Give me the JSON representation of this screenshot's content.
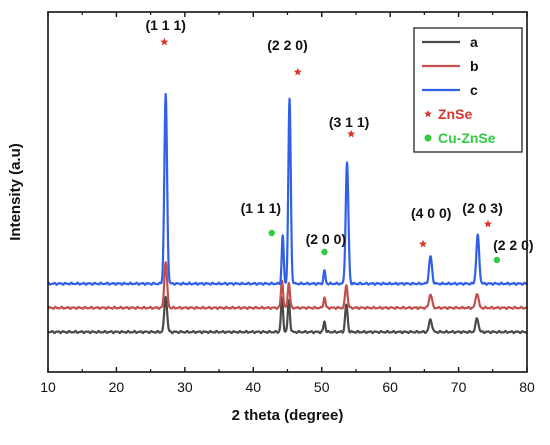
{
  "chart_data": {
    "type": "line",
    "xlabel": "2 theta (degree)",
    "ylabel": "Intensity (a.u)",
    "xlim": [
      10,
      80
    ],
    "xticks": [
      "10",
      "20",
      "30",
      "40",
      "50",
      "60",
      "70",
      "80"
    ],
    "yticks_shown": false,
    "legend_position": "top-right",
    "series": [
      {
        "name": "a",
        "color": "#4a4a4a",
        "baseline": 0.0,
        "peaks": [
          {
            "x": 27.2,
            "h": 0.34,
            "w": 0.28
          },
          {
            "x": 44.2,
            "h": 0.32,
            "w": 0.22
          },
          {
            "x": 45.2,
            "h": 0.3,
            "w": 0.22
          },
          {
            "x": 50.4,
            "h": 0.1,
            "w": 0.2
          },
          {
            "x": 53.6,
            "h": 0.26,
            "w": 0.25
          },
          {
            "x": 65.9,
            "h": 0.12,
            "w": 0.3
          },
          {
            "x": 72.7,
            "h": 0.13,
            "w": 0.3
          }
        ]
      },
      {
        "name": "b",
        "color": "#c0504d",
        "baseline": 0.23,
        "peaks": [
          {
            "x": 27.2,
            "h": 0.44,
            "w": 0.28
          },
          {
            "x": 44.2,
            "h": 0.26,
            "w": 0.22
          },
          {
            "x": 45.2,
            "h": 0.24,
            "w": 0.22
          },
          {
            "x": 50.4,
            "h": 0.1,
            "w": 0.2
          },
          {
            "x": 53.6,
            "h": 0.22,
            "w": 0.25
          },
          {
            "x": 65.9,
            "h": 0.13,
            "w": 0.3
          },
          {
            "x": 72.7,
            "h": 0.14,
            "w": 0.3
          }
        ]
      },
      {
        "name": "c",
        "color": "#3060e8",
        "baseline": 0.46,
        "peaks": [
          {
            "x": 27.2,
            "h": 1.8,
            "w": 0.28
          },
          {
            "x": 44.3,
            "h": 0.46,
            "w": 0.2
          },
          {
            "x": 45.3,
            "h": 1.76,
            "w": 0.25
          },
          {
            "x": 50.4,
            "h": 0.12,
            "w": 0.2
          },
          {
            "x": 53.7,
            "h": 1.15,
            "w": 0.28
          },
          {
            "x": 65.9,
            "h": 0.26,
            "w": 0.3
          },
          {
            "x": 72.8,
            "h": 0.46,
            "w": 0.3
          }
        ]
      }
    ],
    "legend": [
      {
        "text": "a",
        "type": "line",
        "color": "#4a4a4a"
      },
      {
        "text": "b",
        "type": "line",
        "color": "#c0504d"
      },
      {
        "text": "c",
        "type": "line",
        "color": "#3060e8"
      },
      {
        "text": "ZnSe",
        "type": "star",
        "color": "#d9362a"
      },
      {
        "text": "Cu-ZnSe",
        "type": "dot",
        "color": "#2ecc40"
      }
    ],
    "annotations": [
      {
        "text": "(1 1 1)",
        "x": 27.2,
        "marker": "star",
        "marker_x": 27.0
      },
      {
        "text": "(2 2 0)",
        "x": 45.0,
        "marker": "star",
        "marker_x": 46.5
      },
      {
        "text": "(3 1 1)",
        "x": 54.0,
        "marker": "star",
        "marker_x": 54.3
      },
      {
        "text": "(1 1 1)",
        "x": 41.1,
        "marker": "dot",
        "marker_x": 42.7
      },
      {
        "text": "(2 0 0)",
        "x": 50.6,
        "marker": "dot",
        "marker_x": 50.4
      },
      {
        "text": "(4 0 0)",
        "x": 66.0,
        "marker": "star",
        "marker_x": 64.8
      },
      {
        "text": "(2 0 3)",
        "x": 73.5,
        "marker": "star",
        "marker_x": 74.3
      },
      {
        "text": "(2 2 0)",
        "x": 78.0,
        "marker": "dot",
        "marker_x": 75.6
      }
    ]
  }
}
